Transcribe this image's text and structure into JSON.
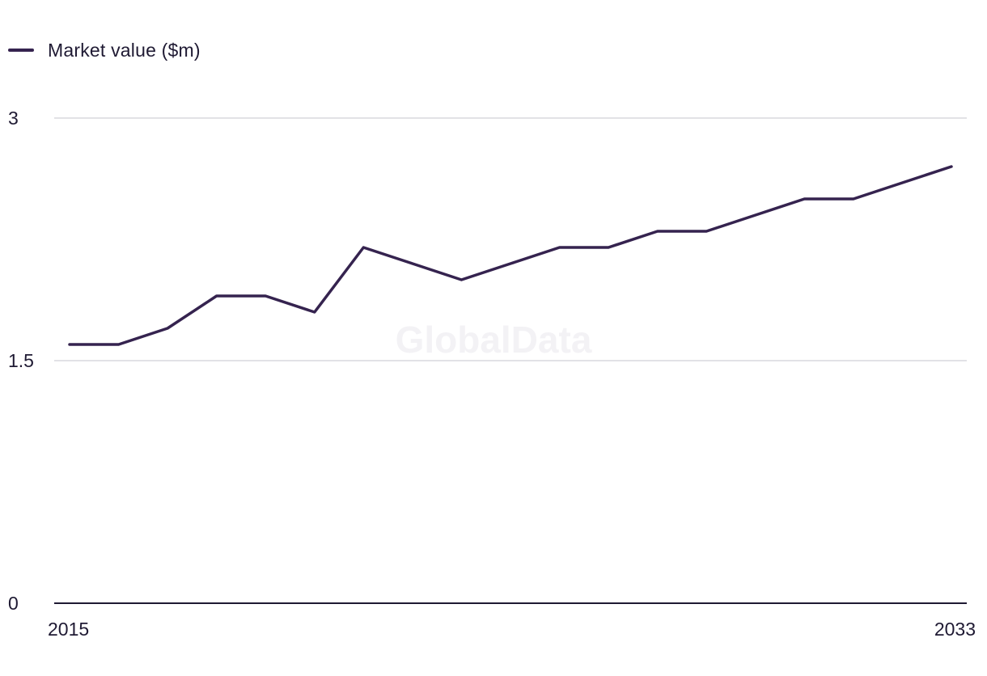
{
  "legend": {
    "label": "Market value ($m)"
  },
  "watermark": "GlobalData",
  "colors": {
    "series": "#35234f",
    "grid": "#d9d9de",
    "axis": "#1f1a33"
  },
  "chart_data": {
    "type": "line",
    "title": "",
    "xlabel": "",
    "ylabel": "",
    "x": [
      2015,
      2016,
      2017,
      2018,
      2019,
      2020,
      2021,
      2022,
      2023,
      2024,
      2025,
      2026,
      2027,
      2028,
      2029,
      2030,
      2031,
      2032,
      2033
    ],
    "x_tick_labels": [
      "2015",
      "2033"
    ],
    "y_ticks": [
      0,
      1.5,
      3
    ],
    "y_tick_labels": [
      "0",
      "1.5",
      "3"
    ],
    "ylim": [
      0,
      3
    ],
    "grid": "horizontal",
    "legend_position": "top-left",
    "series": [
      {
        "name": "Market value ($m)",
        "values": [
          1.6,
          1.6,
          1.7,
          1.9,
          1.9,
          1.8,
          2.2,
          2.1,
          2.0,
          2.1,
          2.2,
          2.2,
          2.3,
          2.3,
          2.4,
          2.5,
          2.5,
          2.6,
          2.7
        ]
      }
    ]
  }
}
